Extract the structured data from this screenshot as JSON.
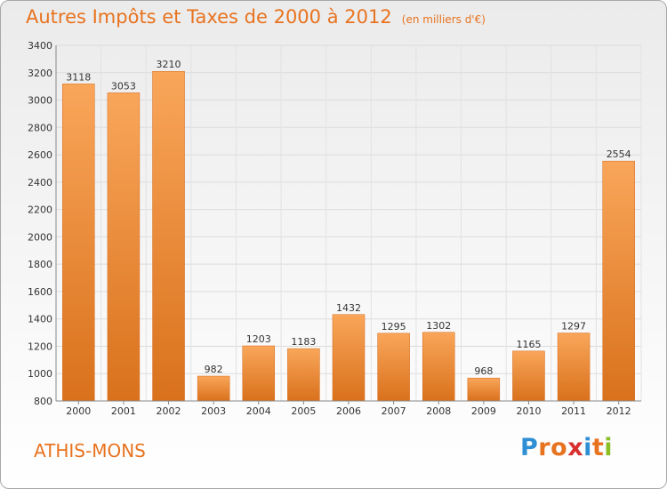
{
  "header": {
    "title": "Autres Impôts et Taxes de 2000 à 2012",
    "subtitle": "(en milliers d'€)"
  },
  "footer": {
    "commune": "ATHIS-MONS",
    "brand_letters": [
      "P",
      "r",
      "o",
      "x",
      "i",
      "t",
      "i"
    ]
  },
  "colors": {
    "accent": "#e8731f",
    "bar_top": "#f9a65a",
    "bar_bottom": "#d9711c",
    "brand": [
      "#2f8fd4",
      "#e8731f",
      "#e8731f",
      "#d92f2f",
      "#2f8fd4",
      "#e8731f",
      "#8cbf26"
    ]
  },
  "chart_data": {
    "type": "bar",
    "categories": [
      "2000",
      "2001",
      "2002",
      "2003",
      "2004",
      "2005",
      "2006",
      "2007",
      "2008",
      "2009",
      "2010",
      "2011",
      "2012"
    ],
    "values": [
      3118,
      3053,
      3210,
      982,
      1203,
      1183,
      1432,
      1295,
      1302,
      968,
      1165,
      1297,
      2554
    ],
    "title": "Autres Impôts et Taxes de 2000 à 2012",
    "subtitle": "(en milliers d'€)",
    "xlabel": "",
    "ylabel": "",
    "ylim": [
      800,
      3400
    ],
    "yticks": [
      800,
      1000,
      1200,
      1400,
      1600,
      1800,
      2000,
      2200,
      2400,
      2600,
      2800,
      3000,
      3200,
      3400
    ],
    "grid": true,
    "legend": "none"
  }
}
